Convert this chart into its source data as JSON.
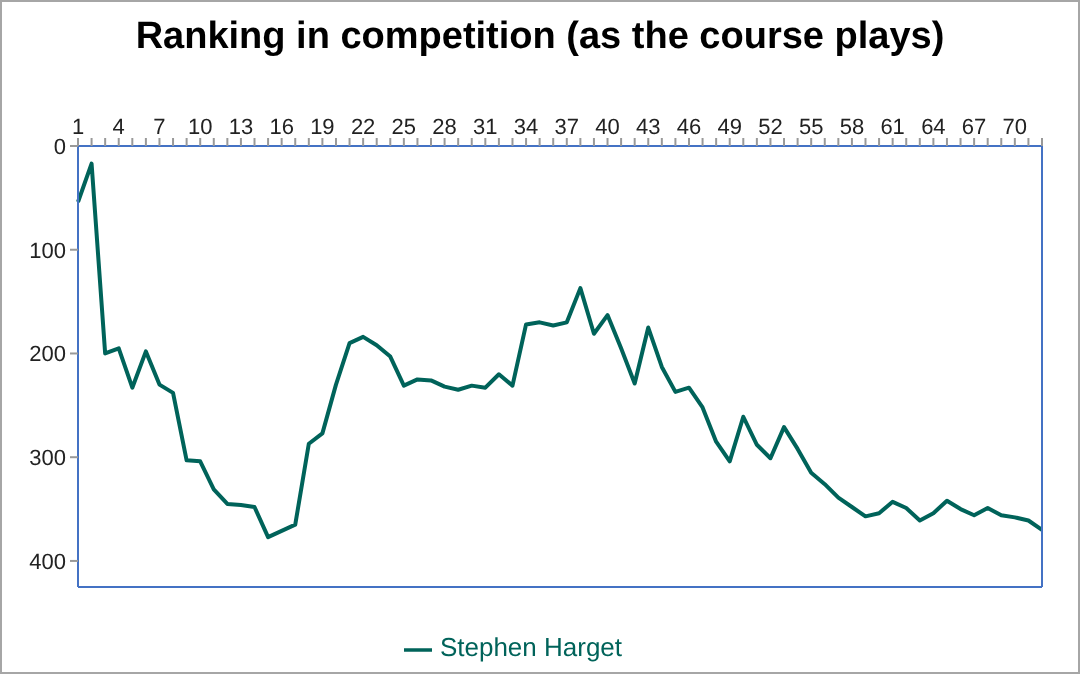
{
  "chart_data": {
    "type": "line",
    "title": "Ranking in competition (as the course plays)",
    "categories": [
      "1",
      null,
      null,
      "4",
      null,
      null,
      "7",
      null,
      null,
      "10",
      null,
      null,
      "13",
      null,
      null,
      "16",
      null,
      null,
      "19",
      null,
      null,
      "22",
      null,
      null,
      "25",
      null,
      null,
      "28",
      null,
      null,
      "31",
      null,
      null,
      "34",
      null,
      null,
      "37",
      null,
      null,
      "40",
      null,
      null,
      "43",
      null,
      null,
      "46",
      null,
      null,
      "49",
      null,
      null,
      "52",
      null,
      null,
      "55",
      null,
      null,
      "58",
      null,
      null,
      "61",
      null,
      null,
      "64",
      null,
      null,
      "67",
      null,
      null,
      "70",
      null,
      null
    ],
    "series": [
      {
        "name": "Stephen Harget",
        "color": "#00635a",
        "values": [
          54,
          17,
          200,
          195,
          233,
          198,
          230,
          238,
          303,
          304,
          331,
          345,
          346,
          348,
          377,
          371,
          365,
          287,
          277,
          230,
          190,
          184,
          192,
          203,
          231,
          225,
          226,
          232,
          235,
          231,
          233,
          220,
          231,
          172,
          170,
          173,
          170,
          137,
          181,
          163,
          195,
          229,
          175,
          213,
          237,
          233,
          252,
          285,
          304,
          261,
          288,
          301,
          271,
          292,
          315,
          326,
          339,
          348,
          357,
          354,
          343,
          349,
          361,
          354,
          342,
          350,
          356,
          349,
          356,
          358,
          361,
          370
        ]
      }
    ],
    "ylim": [
      425,
      0
    ],
    "yticks": [
      0,
      100,
      200,
      300,
      400
    ],
    "grid": false,
    "legend": "bottom",
    "marker": "none",
    "line_style": "solid"
  }
}
